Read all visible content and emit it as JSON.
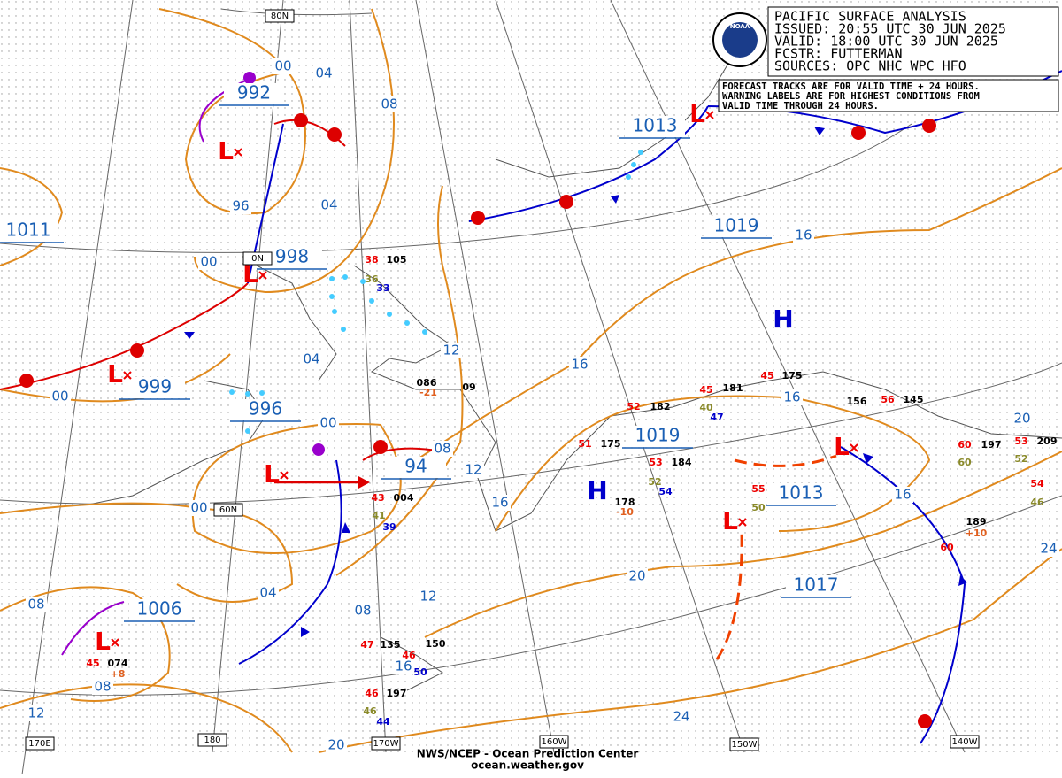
{
  "header": {
    "title": "PACIFIC SURFACE ANALYSIS",
    "issued": "ISSUED: 20:55 UTC 30 JUN 2025",
    "valid": "VALID:  18:00 UTC 30 JUN 2025",
    "forecaster": "FCSTR:  FUTTERMAN",
    "sources": "SOURCES: OPC NHC WPC HFO"
  },
  "note": [
    "FORECAST TRACKS ARE FOR VALID TIME + 24 HOURS.",
    "WARNING LABELS ARE FOR HIGHEST CONDITIONS FROM",
    "VALID TIME THROUGH 24 HOURS."
  ],
  "logo": "NOAA",
  "central_pressures": [
    "992",
    "1013",
    "1019",
    "998",
    "999",
    "996",
    "94",
    "1019",
    "1013",
    "1017",
    "1006",
    "1011"
  ],
  "pressure_systems": [
    "L",
    "L",
    "L",
    "L",
    "L",
    "L",
    "L",
    "L",
    "H",
    "H"
  ],
  "isobar_labels": [
    "00",
    "04",
    "08",
    "96",
    "04",
    "00",
    "16",
    "16",
    "12",
    "04",
    "00",
    "00",
    "08",
    "12",
    "16",
    "00",
    "16",
    "16",
    "20",
    "04",
    "12",
    "08",
    "08",
    "16",
    "08",
    "12",
    "24",
    "20",
    "20",
    "24"
  ],
  "graticule_labels": [
    "80N",
    "0N",
    "60N",
    "170E",
    "180",
    "170W",
    "160W",
    "150W",
    "140W"
  ],
  "station_obs": [
    "38",
    "105",
    "36",
    "33",
    "086",
    "-21",
    "09",
    "52",
    "182",
    "45",
    "181",
    "175",
    "45",
    "156",
    "56",
    "145",
    "40",
    "47",
    "51",
    "175",
    "53",
    "184",
    "52",
    "54",
    "178",
    "-10",
    "43",
    "004",
    "41",
    "39",
    "45",
    "074",
    "+8",
    "47",
    "135",
    "46",
    "150",
    "46",
    "197",
    "46",
    "44",
    "50",
    "60",
    "197",
    "53",
    "209",
    "60",
    "52",
    "55",
    "50",
    "54",
    "46",
    "60",
    "189",
    "+10"
  ],
  "footer": {
    "center": "NWS/NCEP - Ocean Prediction Center",
    "url": "ocean.weather.gov"
  }
}
